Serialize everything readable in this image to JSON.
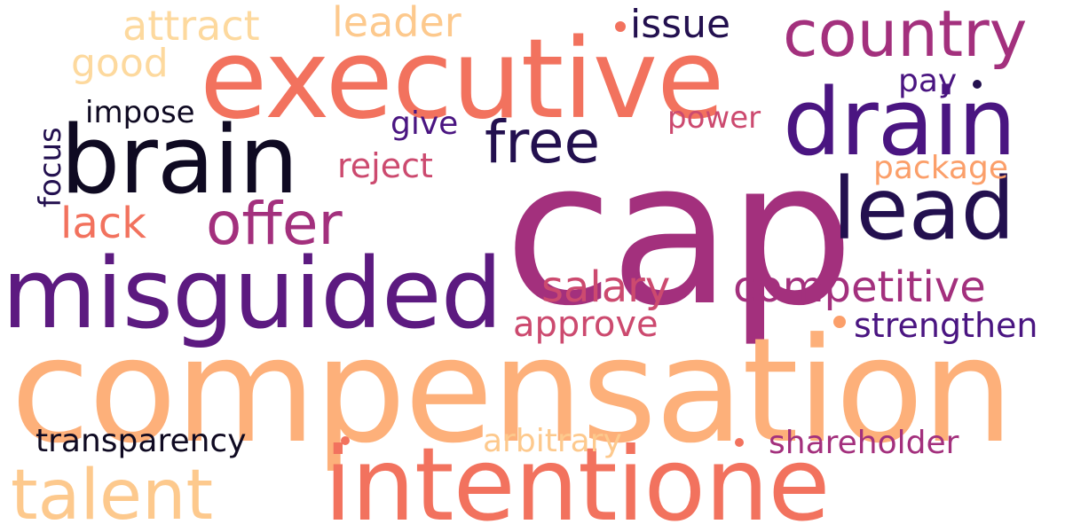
{
  "palette": {
    "near_black": "#0f0a22",
    "deep_indigo": "#23104f",
    "purple": "#5c1a80",
    "violet": "#4a1581",
    "magenta": "#a3307d",
    "pink_red": "#cc4a6f",
    "coral": "#f2725e",
    "orange": "#fb9f6a",
    "peach": "#fdb07a",
    "light_peach": "#fdc98d",
    "pale_peach": "#fdd99e"
  },
  "words": {
    "cap": "cap",
    "compensation": "compensation",
    "executive": "executive",
    "misguided": "misguided",
    "intentione": "intentione",
    "brain": "brain",
    "drain": "drain",
    "lead": "lead",
    "country": "country",
    "talent": "talent",
    "offer": "offer",
    "free": "free",
    "competitive": "competitive",
    "salary": "salary",
    "leader": "leader",
    "attract": "attract",
    "issue": "issue",
    "good": "good",
    "impose": "impose",
    "give": "give",
    "power": "power",
    "pay": "pay",
    "reject": "reject",
    "package": "package",
    "lack": "lack",
    "focus": "focus",
    "approve": "approve",
    "strengthen": "strengthen",
    "transparency": "transparency",
    "arbitrary": "arbitrary",
    "shareholder": "shareholder"
  }
}
